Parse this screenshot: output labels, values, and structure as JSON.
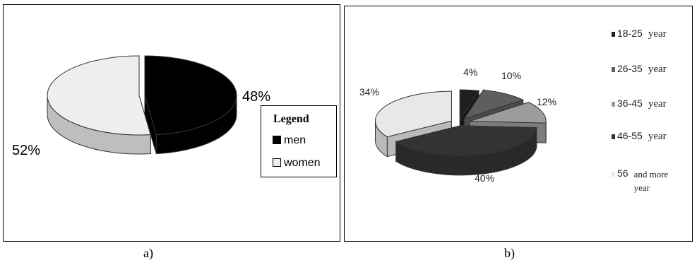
{
  "chart_data": [
    {
      "panel": "a)",
      "type": "pie",
      "labels": [
        "men",
        "women"
      ],
      "values": [
        48,
        52
      ],
      "value_labels": [
        "48%",
        "52%"
      ],
      "colors": [
        "#000000",
        "#eeeeee"
      ],
      "legend_title": "Legend",
      "legend_placement": "right",
      "three_d": true
    },
    {
      "panel": "b)",
      "type": "pie",
      "labels": [
        "18-25",
        "26-35",
        "36-45",
        "46-55",
        "56"
      ],
      "legend_units": [
        "year",
        "year",
        "year",
        "year",
        "and more year"
      ],
      "values": [
        4,
        10,
        12,
        40,
        34
      ],
      "value_labels": [
        "4%",
        "10%",
        "12%",
        "40%",
        "34%"
      ],
      "colors": [
        "#1e1e1e",
        "#5e5e5e",
        "#9c9c9c",
        "#333333",
        "#e8e8e8"
      ],
      "legend_placement": "right",
      "three_d": true,
      "exploded": true
    }
  ]
}
